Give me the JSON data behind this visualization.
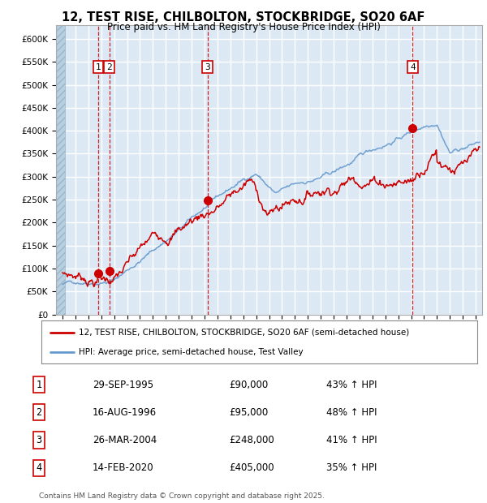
{
  "title1": "12, TEST RISE, CHILBOLTON, STOCKBRIDGE, SO20 6AF",
  "title2": "Price paid vs. HM Land Registry's House Price Index (HPI)",
  "ylim": [
    0,
    630000
  ],
  "yticks": [
    0,
    50000,
    100000,
    150000,
    200000,
    250000,
    300000,
    350000,
    400000,
    450000,
    500000,
    550000,
    600000
  ],
  "ytick_labels": [
    "£0",
    "£50K",
    "£100K",
    "£150K",
    "£200K",
    "£250K",
    "£300K",
    "£350K",
    "£400K",
    "£450K",
    "£500K",
    "£550K",
    "£600K"
  ],
  "bg_color": "#dce9f5",
  "hatch_color": "#b8cfe0",
  "grid_color": "#ffffff",
  "red_line_color": "#cc0000",
  "blue_line_color": "#6699cc",
  "sale_points": [
    {
      "date_num": 1995.75,
      "price": 90000,
      "label": "1"
    },
    {
      "date_num": 1996.62,
      "price": 95000,
      "label": "2"
    },
    {
      "date_num": 2004.23,
      "price": 248000,
      "label": "3"
    },
    {
      "date_num": 2020.12,
      "price": 405000,
      "label": "4"
    }
  ],
  "legend_line1": "12, TEST RISE, CHILBOLTON, STOCKBRIDGE, SO20 6AF (semi-detached house)",
  "legend_line2": "HPI: Average price, semi-detached house, Test Valley",
  "table_rows": [
    {
      "num": "1",
      "date": "29-SEP-1995",
      "price": "£90,000",
      "hpi": "43% ↑ HPI"
    },
    {
      "num": "2",
      "date": "16-AUG-1996",
      "price": "£95,000",
      "hpi": "48% ↑ HPI"
    },
    {
      "num": "3",
      "date": "26-MAR-2004",
      "price": "£248,000",
      "hpi": "41% ↑ HPI"
    },
    {
      "num": "4",
      "date": "14-FEB-2020",
      "price": "£405,000",
      "hpi": "35% ↑ HPI"
    }
  ],
  "footer": "Contains HM Land Registry data © Crown copyright and database right 2025.\nThis data is licensed under the Open Government Licence v3.0.",
  "xlim": [
    1992.5,
    2025.5
  ],
  "xtick_years": [
    1993,
    1994,
    1995,
    1996,
    1997,
    1998,
    1999,
    2000,
    2001,
    2002,
    2003,
    2004,
    2005,
    2006,
    2007,
    2008,
    2009,
    2010,
    2011,
    2012,
    2013,
    2014,
    2015,
    2016,
    2017,
    2018,
    2019,
    2020,
    2021,
    2022,
    2023,
    2024,
    2025
  ]
}
